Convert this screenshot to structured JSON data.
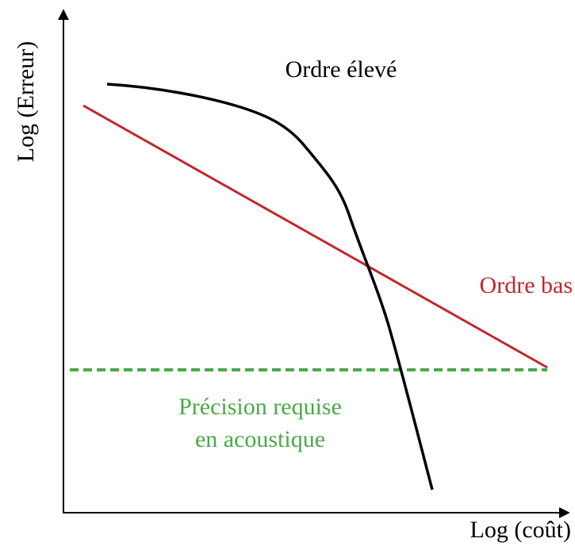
{
  "axes": {
    "y_label": "Log (Erreur)",
    "x_label": "Log (coût)"
  },
  "curves": {
    "high_order": "Ordre élevé",
    "low_order": "Ordre bas"
  },
  "threshold": {
    "line1": "Précision requise",
    "line2": "en acoustique"
  }
}
